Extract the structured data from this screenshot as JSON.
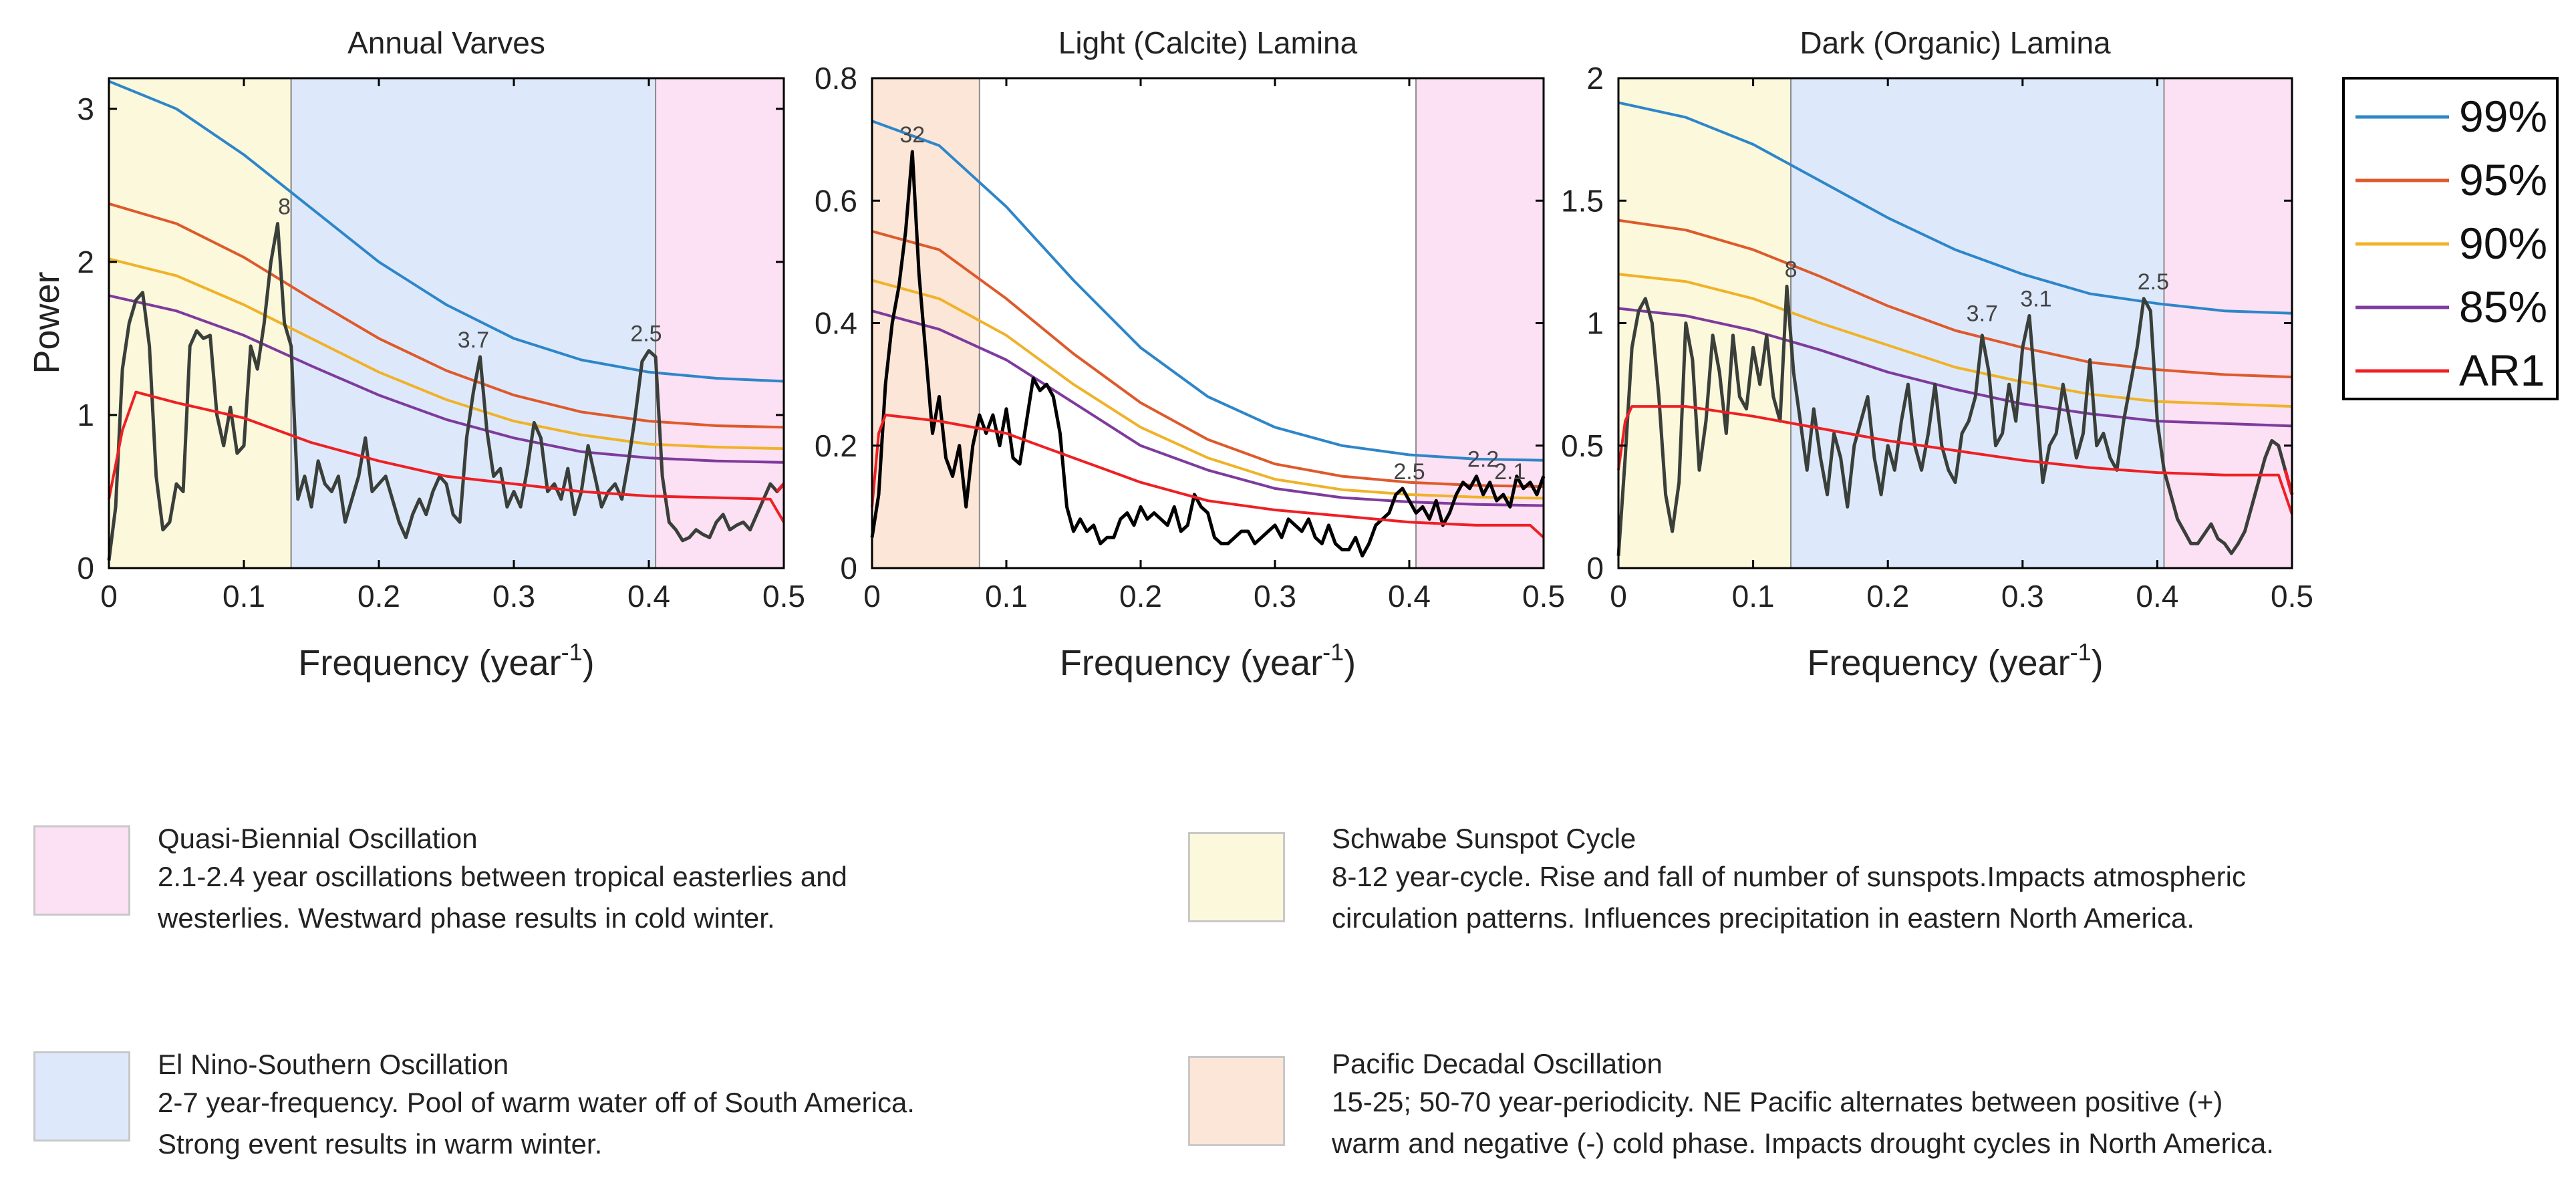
{
  "colors": {
    "qbo": "#fce0f3",
    "enso": "#dde9fb",
    "sunspot": "#fbf8dc",
    "pdo": "#fce6d8",
    "c99": "#2e86c9",
    "c95": "#de5a2b",
    "c90": "#f0b228",
    "c85": "#7e3b9d",
    "ar1": "#ee2024",
    "spectrum_grey": "#3a3f3a",
    "spectrum_black": "#000000"
  },
  "shared": {
    "ylabel": "Power",
    "xlabel_main": "Frequency (year",
    "xlabel_sup": "-1",
    "xlabel_close": ")"
  },
  "chart_data": [
    {
      "type": "line",
      "title": "Annual Varves",
      "xlim": [
        0,
        0.5
      ],
      "ylim": [
        0,
        3.2
      ],
      "xticks": [
        "0",
        "0.1",
        "0.2",
        "0.3",
        "0.4",
        "0.5"
      ],
      "yticks": [
        "0",
        "1",
        "2",
        "3"
      ],
      "ytick_values": [
        0,
        1,
        2,
        3
      ],
      "bands": [
        {
          "from": 0,
          "to": 0.135,
          "color": "sunspot"
        },
        {
          "from": 0.135,
          "to": 0.405,
          "color": "enso"
        },
        {
          "from": 0.405,
          "to": 0.5,
          "color": "qbo"
        }
      ],
      "confidence": {
        "x": [
          0,
          0.05,
          0.1,
          0.15,
          0.2,
          0.25,
          0.3,
          0.35,
          0.4,
          0.45,
          0.5
        ],
        "c99": [
          3.18,
          3.0,
          2.7,
          2.35,
          2.0,
          1.72,
          1.5,
          1.36,
          1.28,
          1.24,
          1.22
        ],
        "c95": [
          2.38,
          2.25,
          2.03,
          1.76,
          1.5,
          1.29,
          1.13,
          1.02,
          0.96,
          0.93,
          0.92
        ],
        "c90": [
          2.02,
          1.91,
          1.72,
          1.5,
          1.28,
          1.1,
          0.96,
          0.87,
          0.81,
          0.79,
          0.78
        ],
        "c85": [
          1.78,
          1.68,
          1.52,
          1.32,
          1.13,
          0.97,
          0.85,
          0.76,
          0.72,
          0.7,
          0.69
        ]
      },
      "ar1": {
        "x": [
          0,
          0.01,
          0.02,
          0.05,
          0.1,
          0.15,
          0.2,
          0.25,
          0.3,
          0.35,
          0.4,
          0.45,
          0.49,
          0.5
        ],
        "y": [
          0.45,
          0.9,
          1.15,
          1.08,
          0.98,
          0.82,
          0.7,
          0.6,
          0.55,
          0.5,
          0.47,
          0.46,
          0.45,
          0.3
        ]
      },
      "spectrum": {
        "color": "spectrum_grey",
        "x": [
          0,
          0.005,
          0.01,
          0.015,
          0.02,
          0.025,
          0.03,
          0.035,
          0.04,
          0.045,
          0.05,
          0.055,
          0.06,
          0.065,
          0.07,
          0.075,
          0.08,
          0.085,
          0.09,
          0.095,
          0.1,
          0.105,
          0.11,
          0.115,
          0.12,
          0.125,
          0.13,
          0.135,
          0.14,
          0.145,
          0.15,
          0.155,
          0.16,
          0.165,
          0.17,
          0.175,
          0.18,
          0.185,
          0.19,
          0.195,
          0.2,
          0.205,
          0.21,
          0.215,
          0.22,
          0.225,
          0.23,
          0.235,
          0.24,
          0.245,
          0.25,
          0.255,
          0.26,
          0.265,
          0.27,
          0.275,
          0.28,
          0.285,
          0.29,
          0.295,
          0.3,
          0.305,
          0.31,
          0.315,
          0.32,
          0.325,
          0.33,
          0.335,
          0.34,
          0.345,
          0.35,
          0.355,
          0.36,
          0.365,
          0.37,
          0.375,
          0.38,
          0.385,
          0.39,
          0.395,
          0.4,
          0.405,
          0.41,
          0.415,
          0.42,
          0.425,
          0.43,
          0.435,
          0.44,
          0.445,
          0.45,
          0.455,
          0.46,
          0.465,
          0.47,
          0.475,
          0.48,
          0.485,
          0.49,
          0.495,
          0.5
        ],
        "y": [
          0.05,
          0.4,
          1.3,
          1.6,
          1.75,
          1.8,
          1.45,
          0.6,
          0.25,
          0.3,
          0.55,
          0.5,
          1.45,
          1.55,
          1.5,
          1.52,
          1.0,
          0.8,
          1.05,
          0.75,
          0.8,
          1.45,
          1.3,
          1.6,
          2.0,
          2.25,
          1.6,
          1.45,
          0.45,
          0.6,
          0.4,
          0.7,
          0.55,
          0.5,
          0.6,
          0.3,
          0.45,
          0.6,
          0.85,
          0.5,
          0.55,
          0.6,
          0.45,
          0.3,
          0.2,
          0.35,
          0.45,
          0.35,
          0.5,
          0.6,
          0.55,
          0.35,
          0.3,
          0.85,
          1.15,
          1.38,
          0.9,
          0.6,
          0.65,
          0.4,
          0.5,
          0.4,
          0.65,
          0.95,
          0.85,
          0.5,
          0.55,
          0.45,
          0.65,
          0.35,
          0.5,
          0.8,
          0.6,
          0.4,
          0.5,
          0.55,
          0.45,
          0.7,
          1.0,
          1.35,
          1.42,
          1.38,
          0.6,
          0.3,
          0.25,
          0.18,
          0.2,
          0.25,
          0.22,
          0.2,
          0.3,
          0.35,
          0.25,
          0.28,
          0.3,
          0.25,
          0.35,
          0.45,
          0.55,
          0.5,
          0.55
        ],
        "end_color": "ar1"
      },
      "peaks": [
        {
          "label": "8",
          "x": 0.13,
          "y": 2.25
        },
        {
          "label": "3.7",
          "x": 0.27,
          "y": 1.38
        },
        {
          "label": "2.5",
          "x": 0.398,
          "y": 1.42
        }
      ]
    },
    {
      "type": "line",
      "title": "Light (Calcite) Lamina",
      "xlim": [
        0,
        0.5
      ],
      "ylim": [
        0,
        0.8
      ],
      "xticks": [
        "0",
        "0.1",
        "0.2",
        "0.3",
        "0.4",
        "0.5"
      ],
      "yticks": [
        "0",
        "0.2",
        "0.4",
        "0.6",
        "0.8"
      ],
      "ytick_values": [
        0,
        0.2,
        0.4,
        0.6,
        0.8
      ],
      "bands": [
        {
          "from": 0,
          "to": 0.08,
          "color": "pdo"
        },
        {
          "from": 0.405,
          "to": 0.5,
          "color": "qbo"
        }
      ],
      "confidence": {
        "x": [
          0,
          0.05,
          0.1,
          0.15,
          0.2,
          0.25,
          0.3,
          0.35,
          0.4,
          0.45,
          0.5
        ],
        "c99": [
          0.73,
          0.69,
          0.59,
          0.47,
          0.36,
          0.28,
          0.23,
          0.2,
          0.185,
          0.178,
          0.176
        ],
        "c95": [
          0.55,
          0.52,
          0.44,
          0.35,
          0.27,
          0.21,
          0.17,
          0.15,
          0.14,
          0.135,
          0.133
        ],
        "c90": [
          0.47,
          0.44,
          0.38,
          0.3,
          0.23,
          0.18,
          0.145,
          0.128,
          0.12,
          0.116,
          0.114
        ],
        "c85": [
          0.42,
          0.39,
          0.34,
          0.27,
          0.2,
          0.16,
          0.13,
          0.115,
          0.108,
          0.104,
          0.102
        ]
      },
      "ar1": {
        "x": [
          0,
          0.005,
          0.01,
          0.05,
          0.1,
          0.15,
          0.2,
          0.25,
          0.3,
          0.35,
          0.4,
          0.45,
          0.49,
          0.5
        ],
        "y": [
          0.1,
          0.22,
          0.25,
          0.24,
          0.22,
          0.18,
          0.14,
          0.11,
          0.095,
          0.085,
          0.075,
          0.07,
          0.07,
          0.05
        ]
      },
      "spectrum": {
        "color": "spectrum_black",
        "x": [
          0,
          0.005,
          0.01,
          0.015,
          0.02,
          0.025,
          0.03,
          0.035,
          0.04,
          0.045,
          0.05,
          0.055,
          0.06,
          0.065,
          0.07,
          0.075,
          0.08,
          0.085,
          0.09,
          0.095,
          0.1,
          0.105,
          0.11,
          0.115,
          0.12,
          0.125,
          0.13,
          0.135,
          0.14,
          0.145,
          0.15,
          0.155,
          0.16,
          0.165,
          0.17,
          0.175,
          0.18,
          0.185,
          0.19,
          0.195,
          0.2,
          0.205,
          0.21,
          0.215,
          0.22,
          0.225,
          0.23,
          0.235,
          0.24,
          0.245,
          0.25,
          0.255,
          0.26,
          0.265,
          0.27,
          0.275,
          0.28,
          0.285,
          0.29,
          0.295,
          0.3,
          0.305,
          0.31,
          0.315,
          0.32,
          0.325,
          0.33,
          0.335,
          0.34,
          0.345,
          0.35,
          0.355,
          0.36,
          0.365,
          0.37,
          0.375,
          0.38,
          0.385,
          0.39,
          0.395,
          0.4,
          0.405,
          0.41,
          0.415,
          0.42,
          0.425,
          0.43,
          0.435,
          0.44,
          0.445,
          0.45,
          0.455,
          0.46,
          0.465,
          0.47,
          0.475,
          0.48,
          0.485,
          0.49,
          0.495,
          0.5
        ],
        "y": [
          0.05,
          0.12,
          0.3,
          0.4,
          0.46,
          0.55,
          0.68,
          0.48,
          0.35,
          0.22,
          0.28,
          0.18,
          0.15,
          0.2,
          0.1,
          0.2,
          0.25,
          0.22,
          0.25,
          0.2,
          0.26,
          0.18,
          0.17,
          0.24,
          0.31,
          0.29,
          0.3,
          0.28,
          0.22,
          0.1,
          0.06,
          0.08,
          0.06,
          0.07,
          0.04,
          0.05,
          0.05,
          0.08,
          0.09,
          0.07,
          0.1,
          0.08,
          0.09,
          0.08,
          0.07,
          0.1,
          0.06,
          0.07,
          0.12,
          0.1,
          0.09,
          0.05,
          0.04,
          0.04,
          0.05,
          0.06,
          0.06,
          0.04,
          0.05,
          0.06,
          0.07,
          0.05,
          0.08,
          0.07,
          0.06,
          0.08,
          0.05,
          0.04,
          0.07,
          0.04,
          0.03,
          0.03,
          0.05,
          0.02,
          0.04,
          0.07,
          0.08,
          0.09,
          0.12,
          0.13,
          0.11,
          0.09,
          0.1,
          0.08,
          0.11,
          0.07,
          0.09,
          0.12,
          0.14,
          0.13,
          0.15,
          0.12,
          0.14,
          0.11,
          0.12,
          0.1,
          0.15,
          0.13,
          0.14,
          0.12,
          0.15
        ],
        "end_color": "spectrum_black"
      },
      "peaks": [
        {
          "label": "32",
          "x": 0.03,
          "y": 0.68
        },
        {
          "label": "2.5",
          "x": 0.4,
          "y": 0.13
        },
        {
          "label": "2.2",
          "x": 0.455,
          "y": 0.15
        },
        {
          "label": "2.1",
          "x": 0.475,
          "y": 0.13
        }
      ]
    },
    {
      "type": "line",
      "title": "Dark (Organic) Lamina",
      "xlim": [
        0,
        0.5
      ],
      "ylim": [
        0,
        2
      ],
      "xticks": [
        "0",
        "0.1",
        "0.2",
        "0.3",
        "0.4",
        "0.5"
      ],
      "yticks": [
        "0",
        "0.5",
        "1",
        "1.5",
        "2"
      ],
      "ytick_values": [
        0,
        0.5,
        1,
        1.5,
        2
      ],
      "bands": [
        {
          "from": 0,
          "to": 0.128,
          "color": "sunspot"
        },
        {
          "from": 0.128,
          "to": 0.405,
          "color": "enso"
        },
        {
          "from": 0.405,
          "to": 0.5,
          "color": "qbo"
        }
      ],
      "confidence": {
        "x": [
          0,
          0.05,
          0.1,
          0.15,
          0.2,
          0.25,
          0.3,
          0.35,
          0.4,
          0.45,
          0.5
        ],
        "c99": [
          1.9,
          1.84,
          1.73,
          1.58,
          1.43,
          1.3,
          1.2,
          1.12,
          1.08,
          1.05,
          1.04
        ],
        "c95": [
          1.42,
          1.38,
          1.3,
          1.19,
          1.07,
          0.97,
          0.9,
          0.84,
          0.81,
          0.79,
          0.78
        ],
        "c90": [
          1.2,
          1.17,
          1.1,
          1.0,
          0.91,
          0.82,
          0.76,
          0.71,
          0.68,
          0.67,
          0.66
        ],
        "c85": [
          1.06,
          1.03,
          0.97,
          0.89,
          0.8,
          0.73,
          0.67,
          0.63,
          0.6,
          0.59,
          0.58
        ]
      },
      "ar1": {
        "x": [
          0,
          0.005,
          0.01,
          0.05,
          0.1,
          0.15,
          0.2,
          0.25,
          0.3,
          0.35,
          0.4,
          0.45,
          0.49,
          0.5
        ],
        "y": [
          0.4,
          0.6,
          0.66,
          0.66,
          0.62,
          0.57,
          0.52,
          0.48,
          0.44,
          0.41,
          0.39,
          0.38,
          0.38,
          0.22
        ]
      },
      "spectrum": {
        "color": "spectrum_grey",
        "x": [
          0,
          0.005,
          0.01,
          0.015,
          0.02,
          0.025,
          0.03,
          0.035,
          0.04,
          0.045,
          0.05,
          0.055,
          0.06,
          0.065,
          0.07,
          0.075,
          0.08,
          0.085,
          0.09,
          0.095,
          0.1,
          0.105,
          0.11,
          0.115,
          0.12,
          0.125,
          0.13,
          0.135,
          0.14,
          0.145,
          0.15,
          0.155,
          0.16,
          0.165,
          0.17,
          0.175,
          0.18,
          0.185,
          0.19,
          0.195,
          0.2,
          0.205,
          0.21,
          0.215,
          0.22,
          0.225,
          0.23,
          0.235,
          0.24,
          0.245,
          0.25,
          0.255,
          0.26,
          0.265,
          0.27,
          0.275,
          0.28,
          0.285,
          0.29,
          0.295,
          0.3,
          0.305,
          0.31,
          0.315,
          0.32,
          0.325,
          0.33,
          0.335,
          0.34,
          0.345,
          0.35,
          0.355,
          0.36,
          0.365,
          0.37,
          0.375,
          0.38,
          0.385,
          0.39,
          0.395,
          0.4,
          0.405,
          0.41,
          0.415,
          0.42,
          0.425,
          0.43,
          0.435,
          0.44,
          0.445,
          0.45,
          0.455,
          0.46,
          0.465,
          0.47,
          0.475,
          0.48,
          0.485,
          0.49,
          0.495,
          0.5
        ],
        "y": [
          0.05,
          0.45,
          0.9,
          1.05,
          1.1,
          1.0,
          0.7,
          0.3,
          0.15,
          0.35,
          1.0,
          0.85,
          0.4,
          0.6,
          0.95,
          0.8,
          0.55,
          0.95,
          0.7,
          0.65,
          0.9,
          0.75,
          0.95,
          0.7,
          0.6,
          1.15,
          0.8,
          0.6,
          0.4,
          0.65,
          0.45,
          0.3,
          0.55,
          0.45,
          0.25,
          0.5,
          0.6,
          0.7,
          0.45,
          0.3,
          0.5,
          0.4,
          0.6,
          0.75,
          0.5,
          0.4,
          0.55,
          0.75,
          0.5,
          0.4,
          0.35,
          0.55,
          0.6,
          0.7,
          0.95,
          0.8,
          0.5,
          0.55,
          0.75,
          0.6,
          0.9,
          1.03,
          0.7,
          0.35,
          0.5,
          0.55,
          0.75,
          0.6,
          0.45,
          0.55,
          0.85,
          0.5,
          0.55,
          0.45,
          0.4,
          0.6,
          0.75,
          0.9,
          1.1,
          1.05,
          0.6,
          0.4,
          0.3,
          0.2,
          0.15,
          0.1,
          0.1,
          0.14,
          0.18,
          0.12,
          0.1,
          0.06,
          0.1,
          0.15,
          0.25,
          0.35,
          0.45,
          0.52,
          0.5,
          0.4,
          0.3
        ],
        "end_color": "ar1"
      },
      "peaks": [
        {
          "label": "8",
          "x": 0.128,
          "y": 1.15
        },
        {
          "label": "3.7",
          "x": 0.27,
          "y": 0.97
        },
        {
          "label": "3.1",
          "x": 0.31,
          "y": 1.03
        },
        {
          "label": "2.5",
          "x": 0.397,
          "y": 1.1
        }
      ]
    }
  ],
  "series_legend": [
    {
      "label": "99%",
      "color": "c99"
    },
    {
      "label": "95%",
      "color": "c95"
    },
    {
      "label": "90%",
      "color": "c90"
    },
    {
      "label": "85%",
      "color": "c85"
    },
    {
      "label": "AR1",
      "color": "ar1"
    }
  ],
  "band_legend": [
    {
      "key": "qbo",
      "title": "Quasi-Biennial Oscillation",
      "desc": "2.1-2.4 year oscillations between tropical easterlies and\nwesterlies. Westward phase results in cold winter."
    },
    {
      "key": "enso",
      "title": "El Nino-Southern Oscillation",
      "desc": "2-7 year-frequency. Pool of warm water off of South America.\nStrong event results in warm winter."
    },
    {
      "key": "sunspot",
      "title": "Schwabe Sunspot Cycle",
      "desc": "8-12 year-cycle. Rise and fall of number of sunspots.Impacts atmospheric\ncirculation patterns. Influences precipitation in eastern North America."
    },
    {
      "key": "pdo",
      "title": "Pacific Decadal Oscillation",
      "desc": "15-25; 50-70 year-periodicity. NE Pacific alternates between positive (+)\nwarm and negative (-) cold phase. Impacts drought cycles in North America."
    }
  ]
}
